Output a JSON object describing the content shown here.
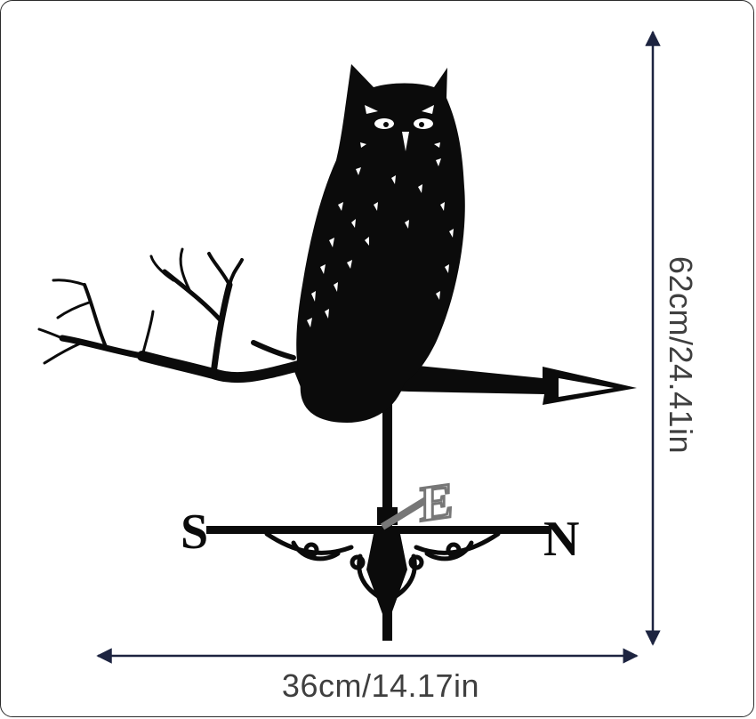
{
  "product": {
    "subject": "owl weathervane",
    "compass_letters": {
      "south": "S",
      "north": "N",
      "east": "E"
    }
  },
  "dimensions": {
    "width_label": "36cm/14.17in",
    "height_label": "62cm/24.41in"
  },
  "colors": {
    "silhouette": "#0b0b0b",
    "dimension_line": "#1d2440",
    "text": "#3f3f3f",
    "border": "#2b2b2b"
  }
}
